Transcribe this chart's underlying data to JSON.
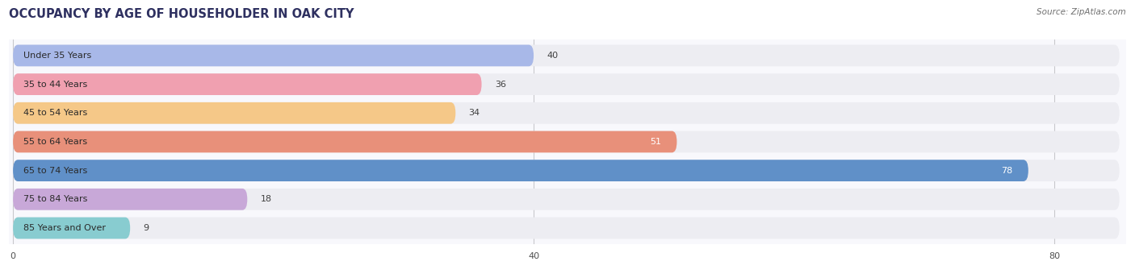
{
  "title": "OCCUPANCY BY AGE OF HOUSEHOLDER IN OAK CITY",
  "source": "Source: ZipAtlas.com",
  "categories": [
    "Under 35 Years",
    "35 to 44 Years",
    "45 to 54 Years",
    "55 to 64 Years",
    "65 to 74 Years",
    "75 to 84 Years",
    "85 Years and Over"
  ],
  "values": [
    40,
    36,
    34,
    51,
    78,
    18,
    9
  ],
  "bar_colors": [
    "#a8b8e8",
    "#f0a0b0",
    "#f5c888",
    "#e8907a",
    "#6090c8",
    "#c8a8d8",
    "#88ccd0"
  ],
  "bar_bg_color": "#ededf2",
  "xlim_max": 83,
  "xticks": [
    0,
    40,
    80
  ],
  "title_color": "#2e3060",
  "title_fontsize": 10.5,
  "label_fontsize": 8.0,
  "value_fontsize": 8.0,
  "source_fontsize": 7.5,
  "source_color": "#707070",
  "fig_bg_color": "#ffffff",
  "axes_bg_color": "#f8f8fc"
}
